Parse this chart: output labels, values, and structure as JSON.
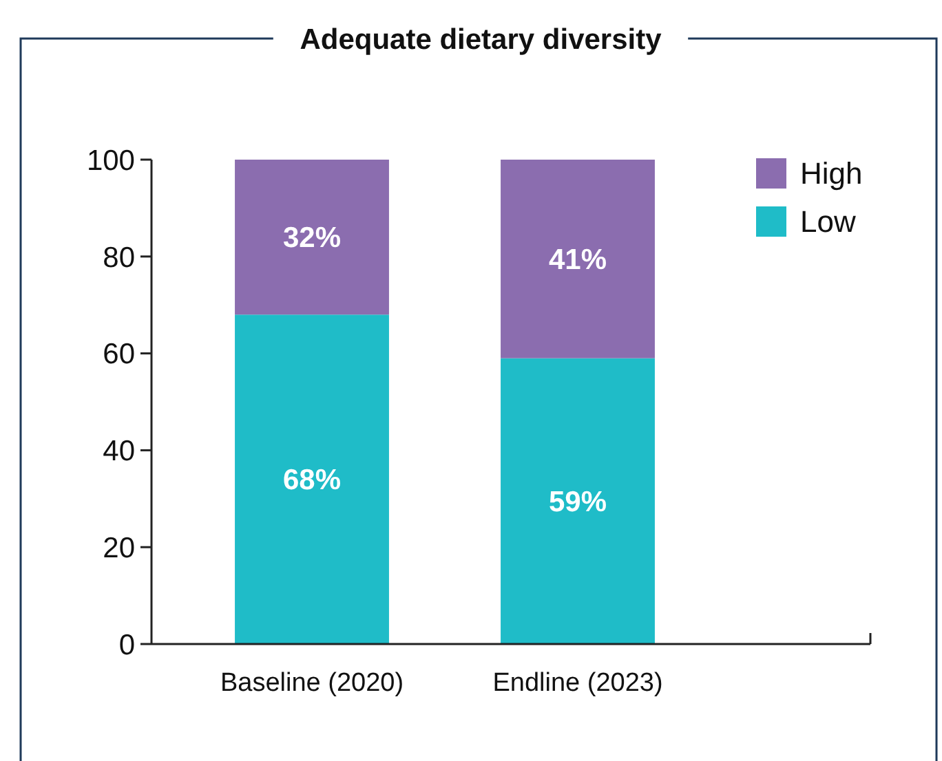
{
  "chart_data": {
    "type": "bar",
    "title": "Adequate dietary diversity",
    "categories": [
      "Baseline (2020)",
      "Endline (2023)"
    ],
    "stacked": true,
    "ylim": [
      0,
      100
    ],
    "yticks": [
      0,
      20,
      40,
      60,
      80,
      100
    ],
    "legend": "top right",
    "series": [
      {
        "name": "Low",
        "color": "#1fbcc8",
        "values": [
          68,
          59
        ],
        "value_labels": [
          "68%",
          "59%"
        ]
      },
      {
        "name": "High",
        "color": "#8b6daf",
        "values": [
          32,
          41
        ],
        "value_labels": [
          "32%",
          "41%"
        ]
      }
    ]
  }
}
